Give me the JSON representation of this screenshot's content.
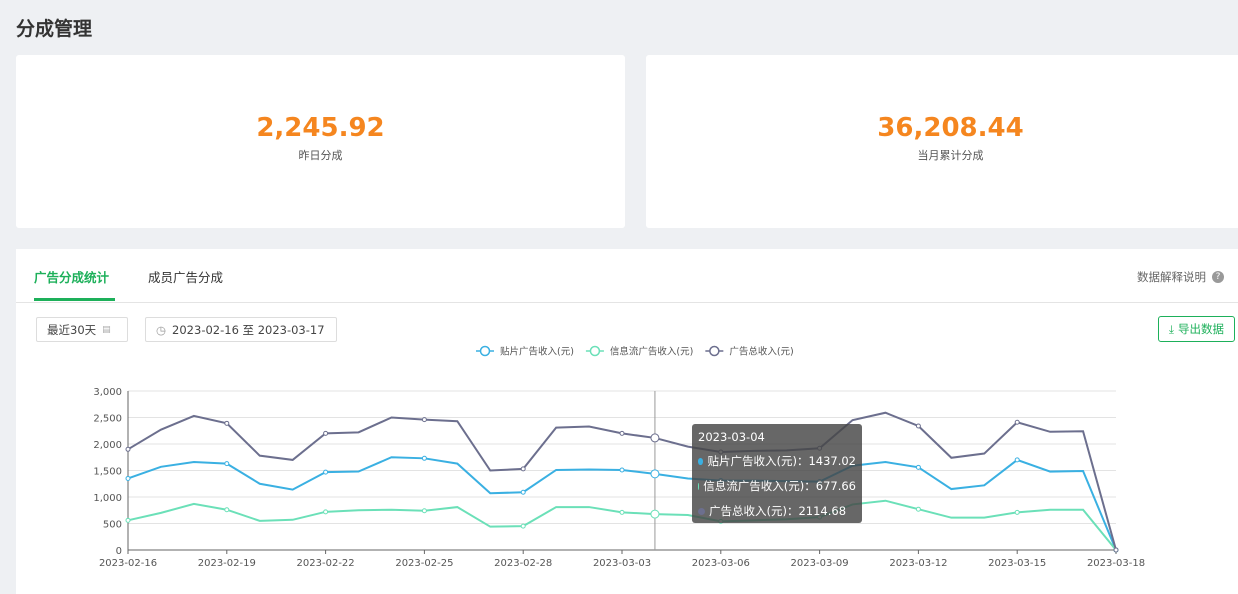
{
  "page_title": "分成管理",
  "stats": [
    {
      "value": "2,245.92",
      "label": "昨日分成"
    },
    {
      "value": "36,208.44",
      "label": "当月累计分成"
    }
  ],
  "tabs": [
    {
      "label": "广告分成统计",
      "active": true
    },
    {
      "label": "成员广告分成",
      "active": false
    }
  ],
  "help_label": "数据解释说明",
  "range_select": "最近30天",
  "date_range": "2023-02-16 至 2023-03-17",
  "export_label": "导出数据",
  "tooltip": {
    "date": "2023-03-04",
    "rows": [
      {
        "label": "贴片广告收入(元)：1437.02",
        "color": "#3ab0e2"
      },
      {
        "label": "信息流广告收入(元)：677.66",
        "color": "#6be0b8"
      },
      {
        "label": "广告总收入(元)：2114.68",
        "color": "#6c6f8e"
      }
    ]
  },
  "chart_data": {
    "type": "line",
    "x": [
      "2023-02-16",
      "2023-02-17",
      "2023-02-18",
      "2023-02-19",
      "2023-02-20",
      "2023-02-21",
      "2023-02-22",
      "2023-02-23",
      "2023-02-24",
      "2023-02-25",
      "2023-02-26",
      "2023-02-27",
      "2023-02-28",
      "2023-03-01",
      "2023-03-02",
      "2023-03-03",
      "2023-03-04",
      "2023-03-05",
      "2023-03-06",
      "2023-03-07",
      "2023-03-08",
      "2023-03-09",
      "2023-03-10",
      "2023-03-11",
      "2023-03-12",
      "2023-03-13",
      "2023-03-14",
      "2023-03-15",
      "2023-03-16",
      "2023-03-17",
      "2023-03-18"
    ],
    "xticks": [
      "2023-02-16",
      "2023-02-19",
      "2023-02-22",
      "2023-02-25",
      "2023-02-28",
      "2023-03-03",
      "2023-03-06",
      "2023-03-09",
      "2023-03-12",
      "2023-03-15",
      "2023-03-18"
    ],
    "yticks": [
      "0",
      "500",
      "1,000",
      "1,500",
      "2,000",
      "2,500",
      "3,000"
    ],
    "ylim": [
      0,
      3000
    ],
    "legend_position": "top-center",
    "series": [
      {
        "name": "贴片广告收入(元)",
        "color": "#3ab0e2",
        "values": [
          1350,
          1570,
          1660,
          1630,
          1250,
          1140,
          1470,
          1480,
          1750,
          1730,
          1630,
          1070,
          1090,
          1510,
          1520,
          1510,
          1437.02,
          1350,
          1310,
          1310,
          1300,
          1290,
          1590,
          1660,
          1560,
          1150,
          1220,
          1700,
          1480,
          1490,
          0
        ]
      },
      {
        "name": "信息流广告收入(元)",
        "color": "#6be0b8",
        "values": [
          560,
          700,
          870,
          760,
          550,
          570,
          720,
          750,
          760,
          740,
          810,
          440,
          450,
          810,
          810,
          710,
          677.66,
          660,
          540,
          560,
          580,
          620,
          860,
          930,
          770,
          610,
          610,
          710,
          760,
          760,
          0
        ]
      },
      {
        "name": "广告总收入(元)",
        "color": "#6c6f8e",
        "values": [
          1900,
          2270,
          2530,
          2390,
          1780,
          1700,
          2200,
          2220,
          2500,
          2460,
          2430,
          1500,
          1530,
          2310,
          2330,
          2200,
          2114.68,
          1950,
          1850,
          1870,
          1880,
          1920,
          2450,
          2590,
          2340,
          1740,
          1820,
          2410,
          2230,
          2240,
          0
        ]
      }
    ],
    "highlight_index": 16
  }
}
